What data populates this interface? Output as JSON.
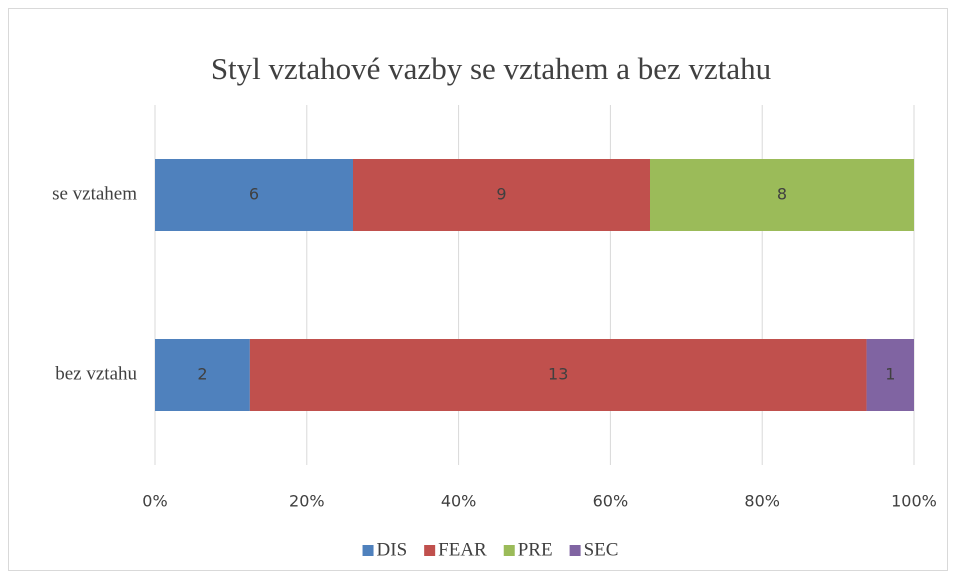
{
  "chart_data": {
    "type": "bar",
    "orientation": "horizontal",
    "stacking": "percent",
    "title": "Styl vztahové vazby se vztahem a bez vztahu",
    "categories": [
      "se vztahem",
      "bez vztahu"
    ],
    "series": [
      {
        "name": "DIS",
        "color": "#4f81bd",
        "values": [
          6,
          2
        ]
      },
      {
        "name": "FEAR",
        "color": "#c0504d",
        "values": [
          9,
          13
        ]
      },
      {
        "name": "PRE",
        "color": "#9bbb59",
        "values": [
          8,
          null
        ]
      },
      {
        "name": "SEC",
        "color": "#8064a2",
        "values": [
          null,
          1
        ]
      }
    ],
    "xlim": [
      0,
      100
    ],
    "xticks": [
      {
        "value": 0,
        "label": "0%"
      },
      {
        "value": 20,
        "label": "20%"
      },
      {
        "value": 40,
        "label": "40%"
      },
      {
        "value": 60,
        "label": "60%"
      },
      {
        "value": 80,
        "label": "80%"
      },
      {
        "value": 100,
        "label": "100%"
      }
    ],
    "grid": true,
    "legend": "bottom"
  }
}
